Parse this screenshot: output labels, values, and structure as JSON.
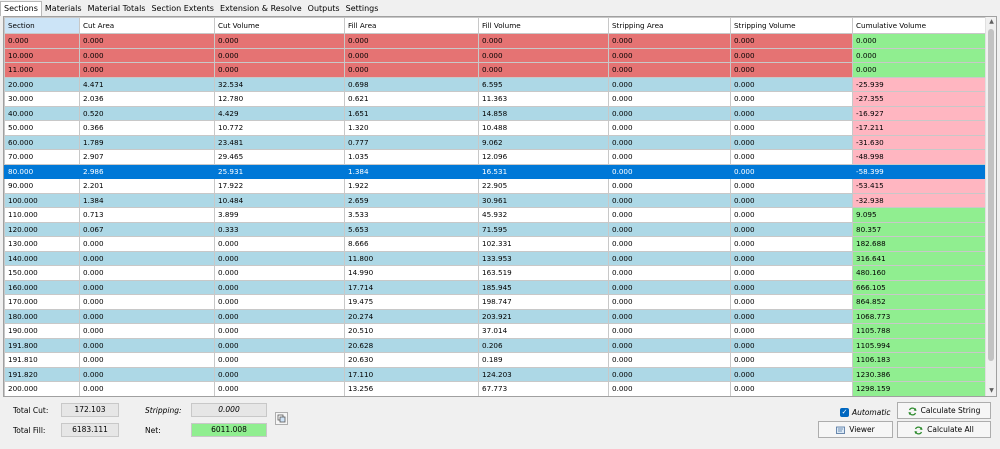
{
  "tabs": [
    "Sections",
    "Materials",
    "Material Totals",
    "Section Extents",
    "Extension & Resolve",
    "Outputs",
    "Settings"
  ],
  "columns": [
    "Section",
    "Cut Area",
    "Cut Volume",
    "Fill Area",
    "Fill Volume",
    "Stripping Area",
    "Stripping Volume",
    "Cumulative Volume"
  ],
  "rows": [
    {
      "cells": [
        "0.000",
        "0.000",
        "0.000",
        "0.000",
        "0.000",
        "0.000",
        "0.000",
        "0.000"
      ],
      "row_style": "red",
      "cum_style": "green"
    },
    {
      "cells": [
        "10.000",
        "0.000",
        "0.000",
        "0.000",
        "0.000",
        "0.000",
        "0.000",
        "0.000"
      ],
      "row_style": "red",
      "cum_style": "green"
    },
    {
      "cells": [
        "11.000",
        "0.000",
        "0.000",
        "0.000",
        "0.000",
        "0.000",
        "0.000",
        "0.000"
      ],
      "row_style": "red",
      "cum_style": "green"
    },
    {
      "cells": [
        "20.000",
        "4.471",
        "32.534",
        "0.698",
        "6.595",
        "0.000",
        "0.000",
        "-25.939"
      ],
      "row_style": "blue",
      "cum_style": "pink"
    },
    {
      "cells": [
        "30.000",
        "2.036",
        "12.780",
        "0.621",
        "11.363",
        "0.000",
        "0.000",
        "-27.355"
      ],
      "row_style": "white",
      "cum_style": "pink"
    },
    {
      "cells": [
        "40.000",
        "0.520",
        "4.429",
        "1.651",
        "14.858",
        "0.000",
        "0.000",
        "-16.927"
      ],
      "row_style": "blue",
      "cum_style": "pink"
    },
    {
      "cells": [
        "50.000",
        "0.366",
        "10.772",
        "1.320",
        "10.488",
        "0.000",
        "0.000",
        "-17.211"
      ],
      "row_style": "white",
      "cum_style": "pink"
    },
    {
      "cells": [
        "60.000",
        "1.789",
        "23.481",
        "0.777",
        "9.062",
        "0.000",
        "0.000",
        "-31.630"
      ],
      "row_style": "blue",
      "cum_style": "pink"
    },
    {
      "cells": [
        "70.000",
        "2.907",
        "29.465",
        "1.035",
        "12.096",
        "0.000",
        "0.000",
        "-48.998"
      ],
      "row_style": "white",
      "cum_style": "pink"
    },
    {
      "cells": [
        "80.000",
        "2.986",
        "25.931",
        "1.384",
        "16.531",
        "0.000",
        "0.000",
        "-58.399"
      ],
      "row_style": "selected",
      "cum_style": "selected"
    },
    {
      "cells": [
        "90.000",
        "2.201",
        "17.922",
        "1.922",
        "22.905",
        "0.000",
        "0.000",
        "-53.415"
      ],
      "row_style": "white",
      "cum_style": "pink"
    },
    {
      "cells": [
        "100.000",
        "1.384",
        "10.484",
        "2.659",
        "30.961",
        "0.000",
        "0.000",
        "-32.938"
      ],
      "row_style": "blue",
      "cum_style": "pink"
    },
    {
      "cells": [
        "110.000",
        "0.713",
        "3.899",
        "3.533",
        "45.932",
        "0.000",
        "0.000",
        "9.095"
      ],
      "row_style": "white",
      "cum_style": "green"
    },
    {
      "cells": [
        "120.000",
        "0.067",
        "0.333",
        "5.653",
        "71.595",
        "0.000",
        "0.000",
        "80.357"
      ],
      "row_style": "blue",
      "cum_style": "green"
    },
    {
      "cells": [
        "130.000",
        "0.000",
        "0.000",
        "8.666",
        "102.331",
        "0.000",
        "0.000",
        "182.688"
      ],
      "row_style": "white",
      "cum_style": "green"
    },
    {
      "cells": [
        "140.000",
        "0.000",
        "0.000",
        "11.800",
        "133.953",
        "0.000",
        "0.000",
        "316.641"
      ],
      "row_style": "blue",
      "cum_style": "green"
    },
    {
      "cells": [
        "150.000",
        "0.000",
        "0.000",
        "14.990",
        "163.519",
        "0.000",
        "0.000",
        "480.160"
      ],
      "row_style": "white",
      "cum_style": "green"
    },
    {
      "cells": [
        "160.000",
        "0.000",
        "0.000",
        "17.714",
        "185.945",
        "0.000",
        "0.000",
        "666.105"
      ],
      "row_style": "blue",
      "cum_style": "green"
    },
    {
      "cells": [
        "170.000",
        "0.000",
        "0.000",
        "19.475",
        "198.747",
        "0.000",
        "0.000",
        "864.852"
      ],
      "row_style": "white",
      "cum_style": "green"
    },
    {
      "cells": [
        "180.000",
        "0.000",
        "0.000",
        "20.274",
        "203.921",
        "0.000",
        "0.000",
        "1068.773"
      ],
      "row_style": "blue",
      "cum_style": "green"
    },
    {
      "cells": [
        "190.000",
        "0.000",
        "0.000",
        "20.510",
        "37.014",
        "0.000",
        "0.000",
        "1105.788"
      ],
      "row_style": "white",
      "cum_style": "green"
    },
    {
      "cells": [
        "191.800",
        "0.000",
        "0.000",
        "20.628",
        "0.206",
        "0.000",
        "0.000",
        "1105.994"
      ],
      "row_style": "blue",
      "cum_style": "green"
    },
    {
      "cells": [
        "191.810",
        "0.000",
        "0.000",
        "20.630",
        "0.189",
        "0.000",
        "0.000",
        "1106.183"
      ],
      "row_style": "white",
      "cum_style": "green"
    },
    {
      "cells": [
        "191.820",
        "0.000",
        "0.000",
        "17.110",
        "124.203",
        "0.000",
        "0.000",
        "1230.386"
      ],
      "row_style": "blue",
      "cum_style": "green"
    },
    {
      "cells": [
        "200.000",
        "0.000",
        "0.000",
        "13.256",
        "67.773",
        "0.000",
        "0.000",
        "1298.159"
      ],
      "row_style": "white",
      "cum_style": "green"
    }
  ],
  "colors": {
    "red": "#e57373",
    "blue": "#add8e6",
    "white": "#ffffff",
    "pink": "#ffb6c1",
    "green": "#90ee90",
    "selected": "#0078d7",
    "selected_text": "#ffffff",
    "header_first": "#cce4f7"
  },
  "summary": {
    "total_cut_label": "Total Cut:",
    "total_cut_value": "172.103",
    "total_fill_label": "Total Fill:",
    "total_fill_value": "6183.111",
    "stripping_label": "Stripping:",
    "stripping_value": "0.000",
    "net_label": "Net:",
    "net_value": "6011.008"
  },
  "controls": {
    "automatic_label": "Automatic",
    "automatic_checked": true,
    "viewer_label": "Viewer",
    "calculate_string_label": "Calculate String",
    "calculate_all_label": "Calculate All"
  },
  "icons": [
    "copy-icon",
    "viewer-icon",
    "refresh-icon"
  ]
}
